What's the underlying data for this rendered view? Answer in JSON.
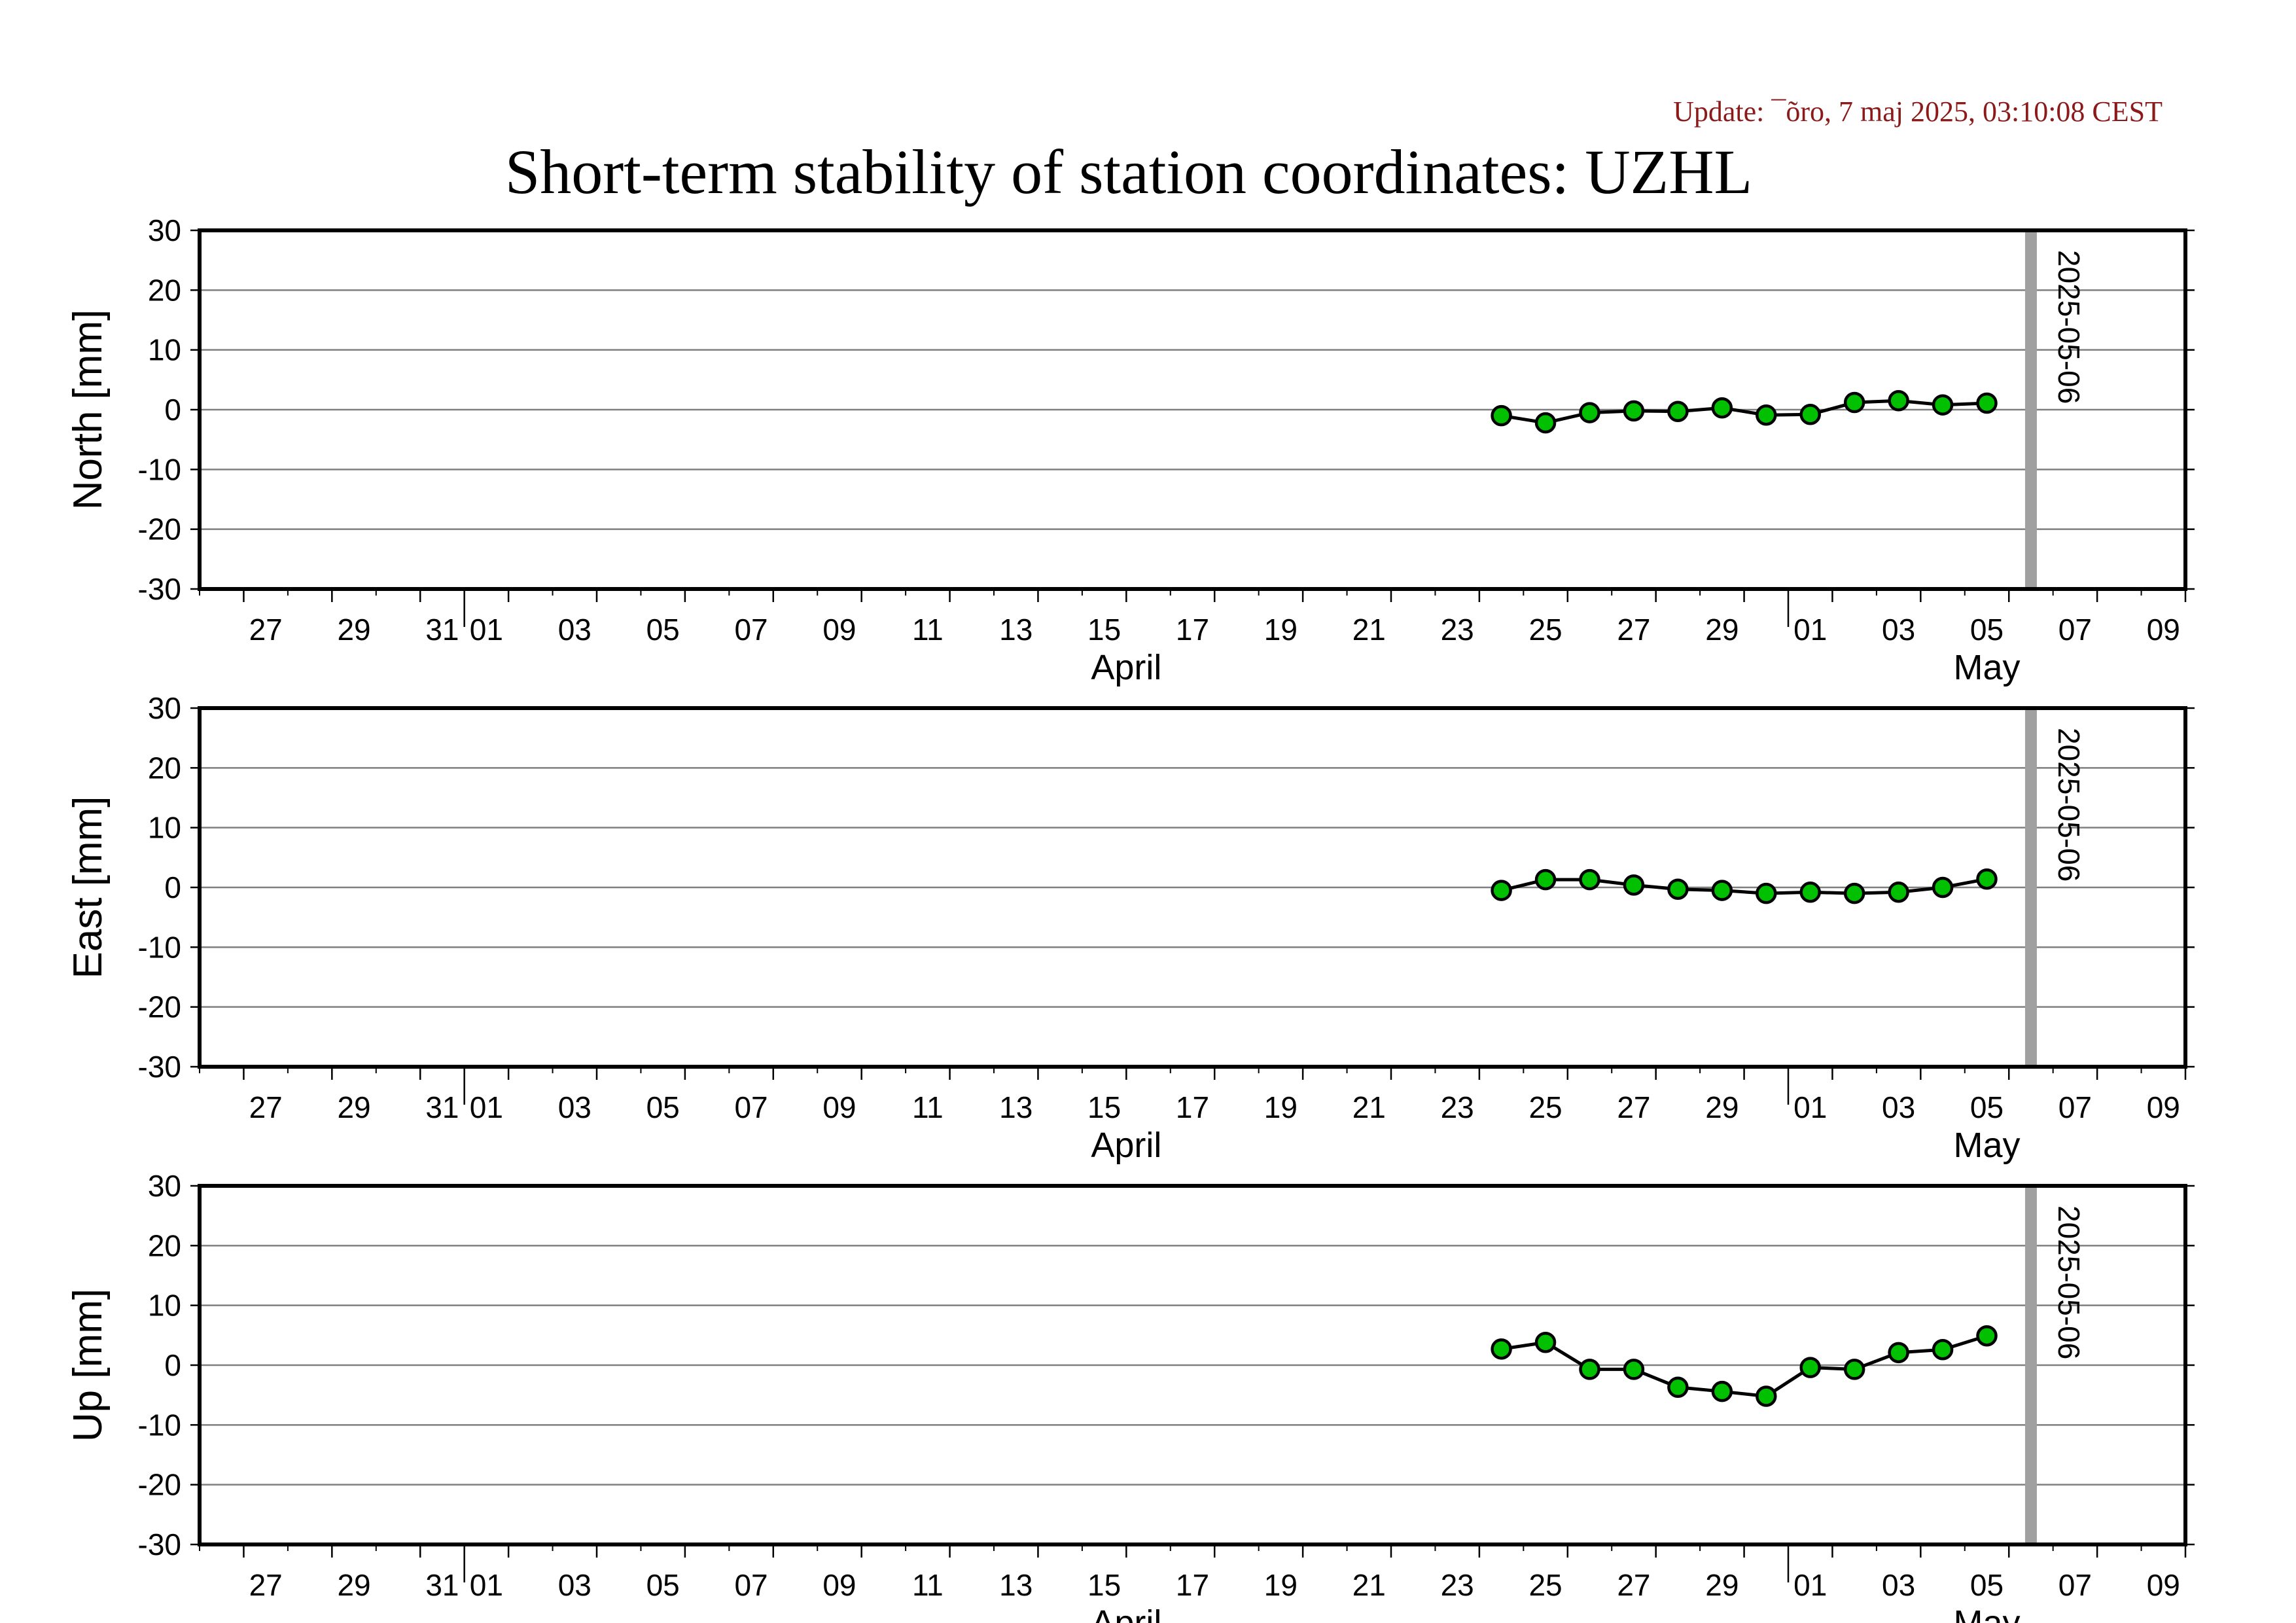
{
  "update_text": "Update: ¯õro, 7 maj 2025, 03:10:08 CEST",
  "colors": {
    "point_fill": "#00c000",
    "point_stroke": "#000000",
    "line": "#000000",
    "grid": "#7f7f7f",
    "marker_line": "#a0a0a0",
    "update_text": "#8b1a1a"
  },
  "chart_data": {
    "title": "Short-term stability of station coordinates: UZHL",
    "type": "line",
    "x_axis": {
      "start": "2025-03-26",
      "end": "2025-05-10",
      "tick_labels": [
        "27",
        "29",
        "31",
        "01",
        "03",
        "05",
        "07",
        "09",
        "11",
        "13",
        "15",
        "17",
        "19",
        "21",
        "23",
        "25",
        "27",
        "29",
        "01",
        "03",
        "05",
        "07",
        "09"
      ],
      "month_labels": [
        "April",
        "May"
      ]
    },
    "y_axis": {
      "ylim": [
        -30,
        30
      ],
      "ticks": [
        "30",
        "20",
        "10",
        "0",
        "-10",
        "-20",
        "-30"
      ]
    },
    "grid": "horizontal",
    "marker": {
      "date": "2025-05-06",
      "label": "2025-05-06"
    },
    "dates": [
      "2025-04-24",
      "2025-04-25",
      "2025-04-26",
      "2025-04-27",
      "2025-04-28",
      "2025-04-29",
      "2025-04-30",
      "2025-05-01",
      "2025-05-02",
      "2025-05-03",
      "2025-05-04",
      "2025-05-05"
    ],
    "panels": [
      {
        "ylabel": "North [mm]",
        "values": [
          -1.0,
          -2.2,
          -0.5,
          -0.2,
          -0.3,
          0.3,
          -0.9,
          -0.8,
          1.2,
          1.5,
          0.8,
          1.1
        ]
      },
      {
        "ylabel": "East [mm]",
        "values": [
          -0.5,
          1.3,
          1.3,
          0.4,
          -0.3,
          -0.5,
          -1.0,
          -0.8,
          -1.0,
          -0.8,
          0.0,
          1.4
        ]
      },
      {
        "ylabel": "Up [mm]",
        "values": [
          2.7,
          3.8,
          -0.7,
          -0.7,
          -3.7,
          -4.4,
          -5.2,
          -0.4,
          -0.7,
          2.1,
          2.6,
          4.9
        ]
      }
    ]
  }
}
